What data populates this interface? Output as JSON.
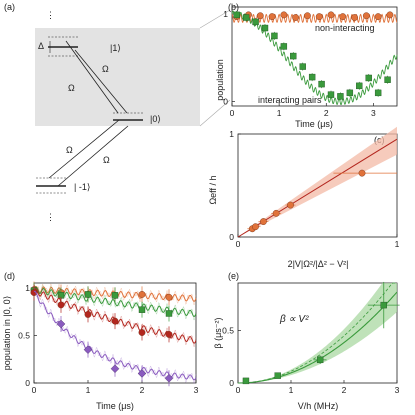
{
  "panel_labels": [
    "(a)",
    "(b)",
    "(c)",
    "(d)",
    "(e)"
  ],
  "colors": {
    "orange": "#e0723a",
    "green": "#3a9a3c",
    "red": "#b3261e",
    "purple": "#8a5bbf",
    "gray_box": "#e3e3e3"
  },
  "level_diagram": {
    "labels": {
      "upper": "|1⟩",
      "middle": "|0⟩",
      "lower": "| -1⟩",
      "detuning": "Δ",
      "rabi": "Ω"
    },
    "ellipsis": "⋮"
  },
  "chart_data": [
    {
      "panel": "(b)",
      "type": "line",
      "xlabel": "Time (μs)",
      "ylabel": "population",
      "xlim": [
        0,
        3.5
      ],
      "ylim": [
        -0.05,
        1.08
      ],
      "xticks": [
        0,
        1,
        2,
        3
      ],
      "yticks": [
        0,
        1
      ],
      "annotations": [
        "non-interacting",
        "interacting pairs"
      ],
      "series": [
        {
          "name": "non-interacting",
          "color": "#e0723a",
          "x": [
            0.1,
            0.35,
            0.6,
            0.85,
            1.1,
            1.35,
            1.6,
            1.85,
            2.1,
            2.35,
            2.6,
            2.85,
            3.1,
            3.35
          ],
          "y": [
            0.97,
            0.99,
            0.98,
            0.97,
            0.99,
            0.96,
            0.98,
            0.97,
            0.99,
            0.97,
            0.96,
            0.98,
            0.97,
            0.99
          ]
        },
        {
          "name": "interacting pairs",
          "color": "#3a9a3c",
          "x": [
            0.1,
            0.3,
            0.5,
            0.7,
            0.9,
            1.1,
            1.3,
            1.5,
            1.7,
            1.9,
            2.1,
            2.3,
            2.5,
            2.7,
            2.9,
            3.1,
            3.3
          ],
          "y": [
            0.99,
            0.96,
            0.91,
            0.84,
            0.75,
            0.63,
            0.52,
            0.4,
            0.28,
            0.2,
            0.08,
            0.06,
            0.1,
            0.18,
            0.27,
            0.1,
            0.25
          ]
        }
      ]
    },
    {
      "panel": "(c)",
      "type": "scatter",
      "xlabel": "2|V|Ω²/|Δ² − V²|",
      "ylabel": "Ωeff / h",
      "xlim": [
        0,
        1
      ],
      "ylim": [
        0,
        1
      ],
      "xticks": [
        0,
        1
      ],
      "yticks": [
        0,
        1
      ],
      "fit_line": [
        [
          0,
          0
        ],
        [
          1,
          0.95
        ]
      ],
      "points": [
        {
          "x": 0.09,
          "y": 0.08
        },
        {
          "x": 0.11,
          "y": 0.1
        },
        {
          "x": 0.16,
          "y": 0.15
        },
        {
          "x": 0.24,
          "y": 0.23
        },
        {
          "x": 0.33,
          "y": 0.31
        },
        {
          "x": 0.78,
          "y": 0.62
        }
      ]
    },
    {
      "panel": "(d)",
      "type": "line",
      "xlabel": "Time (μs)",
      "ylabel": "population in |0, 0⟩",
      "xlim": [
        0,
        3
      ],
      "ylim": [
        0,
        1.05
      ],
      "xticks": [
        0,
        1,
        2,
        3
      ],
      "yticks": [
        0,
        0.5,
        1
      ],
      "series": [
        {
          "name": "orange",
          "color": "#e0723a",
          "x": [
            0,
            0.5,
            1,
            1.5,
            2,
            2.5
          ],
          "y": [
            0.98,
            0.95,
            0.93,
            0.92,
            0.93,
            0.9
          ]
        },
        {
          "name": "green",
          "color": "#3a9a3c",
          "x": [
            0,
            0.5,
            1,
            1.5,
            2,
            2.5
          ],
          "y": [
            0.97,
            0.92,
            0.93,
            0.92,
            0.77,
            0.73
          ]
        },
        {
          "name": "red",
          "color": "#b3261e",
          "x": [
            0,
            0.5,
            1,
            1.5,
            2,
            2.5
          ],
          "y": [
            0.95,
            0.82,
            0.72,
            0.65,
            0.53,
            0.51
          ]
        },
        {
          "name": "purple",
          "color": "#8a5bbf",
          "x": [
            0.5,
            1,
            1.5,
            2,
            2.5
          ],
          "y": [
            0.62,
            0.35,
            0.15,
            0.1,
            0.05
          ]
        }
      ]
    },
    {
      "panel": "(e)",
      "type": "scatter",
      "xlabel": "V/h (MHz)",
      "ylabel": "β (μs⁻²)",
      "xlim": [
        0,
        3
      ],
      "ylim": [
        0,
        0.95
      ],
      "xticks": [
        0,
        1,
        2,
        3
      ],
      "yticks": [
        0,
        0.5
      ],
      "annotation": "β ∝ V²",
      "points": [
        {
          "x": 0.15,
          "y": 0.02
        },
        {
          "x": 0.75,
          "y": 0.07
        },
        {
          "x": 1.55,
          "y": 0.22
        },
        {
          "x": 2.75,
          "y": 0.74
        }
      ]
    }
  ]
}
